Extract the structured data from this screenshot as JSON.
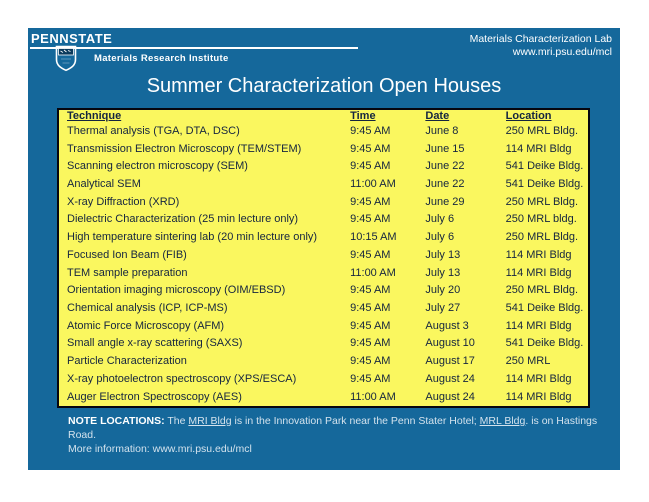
{
  "slide": {
    "logo": {
      "brand": "PENNSTATE",
      "institute": "Materials Research Institute"
    },
    "header_right": {
      "line1": "Materials Characterization Lab",
      "line2": "www.mri.psu.edu/mcl"
    },
    "title": "Summer Characterization Open Houses",
    "table": {
      "headers": [
        "Technique",
        "Time",
        "Date",
        "Location"
      ],
      "rows": [
        [
          "Thermal analysis (TGA, DTA, DSC)",
          "9:45 AM",
          "June 8",
          "250 MRL Bldg."
        ],
        [
          "Transmission Electron Microscopy (TEM/STEM)",
          "9:45 AM",
          "June 15",
          "114 MRI Bldg"
        ],
        [
          "Scanning electron microscopy (SEM)",
          "9:45 AM",
          "June 22",
          "541 Deike Bldg."
        ],
        [
          "Analytical SEM",
          "11:00 AM",
          "June 22",
          "541 Deike Bldg."
        ],
        [
          "X-ray Diffraction (XRD)",
          "9:45 AM",
          "June 29",
          "250 MRL Bldg."
        ],
        [
          "Dielectric Characterization (25 min lecture only)",
          "9:45 AM",
          "July 6",
          "250 MRL bldg."
        ],
        [
          "High temperature sintering lab (20 min lecture only)",
          "10:15 AM",
          "July 6",
          "250 MRL Bldg."
        ],
        [
          "Focused Ion Beam (FIB)",
          "9:45 AM",
          "July 13",
          "114 MRI Bldg"
        ],
        [
          "TEM sample preparation",
          "11:00 AM",
          "July 13",
          "114 MRI Bldg"
        ],
        [
          "Orientation imaging microscopy (OIM/EBSD)",
          "9:45 AM",
          "July 20",
          "250 MRL Bldg."
        ],
        [
          "Chemical analysis (ICP, ICP-MS)",
          "9:45 AM",
          "July 27",
          "541 Deike Bldg."
        ],
        [
          "Atomic Force Microscopy (AFM)",
          "9:45 AM",
          "August 3",
          "114 MRI Bldg"
        ],
        [
          "Small angle x-ray scattering (SAXS)",
          "9:45 AM",
          "August 10",
          "541 Deike Bldg."
        ],
        [
          "Particle Characterization",
          "9:45 AM",
          "August 17",
          "250 MRL"
        ],
        [
          "X-ray photoelectron spectroscopy (XPS/ESCA)",
          "9:45 AM",
          "August 24",
          "114 MRI Bldg"
        ],
        [
          "Auger Electron Spectroscopy (AES)",
          "11:00 AM",
          "August 24",
          "114 MRI Bldg"
        ]
      ]
    },
    "note": {
      "label": "NOTE LOCATIONS:",
      "seg1": " The ",
      "link1": "MRI Bldg",
      "seg2": " is in the Innovation Park near the Penn Stater Hotel; ",
      "link2": "MRL Bldg",
      "seg3": ". is on Hastings Road.",
      "line2": "More information: www.mri.psu.edu/mcl"
    },
    "colors": {
      "slide_background": "#15689B",
      "table_background": "#FAF75F",
      "table_border": "#06060F",
      "table_text": "#15253F",
      "header_text": "#FFFFFF"
    }
  }
}
